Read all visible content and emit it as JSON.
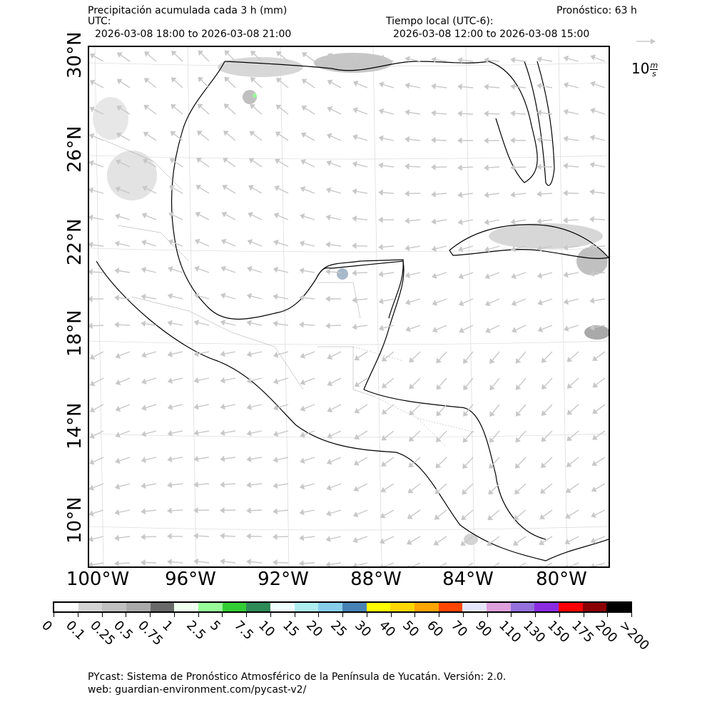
{
  "header": {
    "title": "Precipitación acumulada cada 3 h (mm)",
    "forecast": "Pronóstico: 63 h",
    "utc_label": "UTC:",
    "utc_range": "2026-03-08 18:00 to 2026-03-08 21:00",
    "local_label": "Tiempo local (UTC-6):",
    "local_range": "2026-03-08 12:00 to 2026-03-08 15:00"
  },
  "axes": {
    "lat_labels": [
      "30°N",
      "26°N",
      "22°N",
      "18°N",
      "14°N",
      "10°N"
    ],
    "lon_labels": [
      "100°W",
      "96°W",
      "92°W",
      "88°W",
      "84°W",
      "80°W"
    ],
    "lat_range": [
      8.5,
      30.5
    ],
    "lon_range": [
      -100.5,
      -78
    ]
  },
  "wind_reference": {
    "value": "10",
    "unit_num": "m",
    "unit_den": "s",
    "arrow_color": "#c8c8c8"
  },
  "colorbar": {
    "ticks": [
      "0",
      "0.1",
      "0.25",
      "0.5",
      "0.75",
      "1",
      "2.5",
      "5",
      "7.5",
      "10",
      "15",
      "20",
      "25",
      "30",
      "40",
      "50",
      "60",
      "70",
      "90",
      "110",
      "130",
      "150",
      "175",
      "200",
      ">200"
    ],
    "colors": [
      "#ffffff",
      "#d3d3d3",
      "#c0c0c0",
      "#a9a9a9",
      "#696969",
      "#f0fff0",
      "#98fb98",
      "#32cd32",
      "#2e8b57",
      "#f0ffff",
      "#afeeee",
      "#87ceeb",
      "#4682b4",
      "#ffff00",
      "#ffd700",
      "#ffa500",
      "#ff4500",
      "#e6e6fa",
      "#dda0dd",
      "#9370db",
      "#8a2be2",
      "#ff0000",
      "#8b0000",
      "#000000"
    ]
  },
  "footer": {
    "line1": "PYcast: Sistema de Pronóstico Atmosférico de la Península de Yucatán. Versión: 2.0.",
    "line2": "web: guardian-environment.com/pycast-v2/"
  }
}
